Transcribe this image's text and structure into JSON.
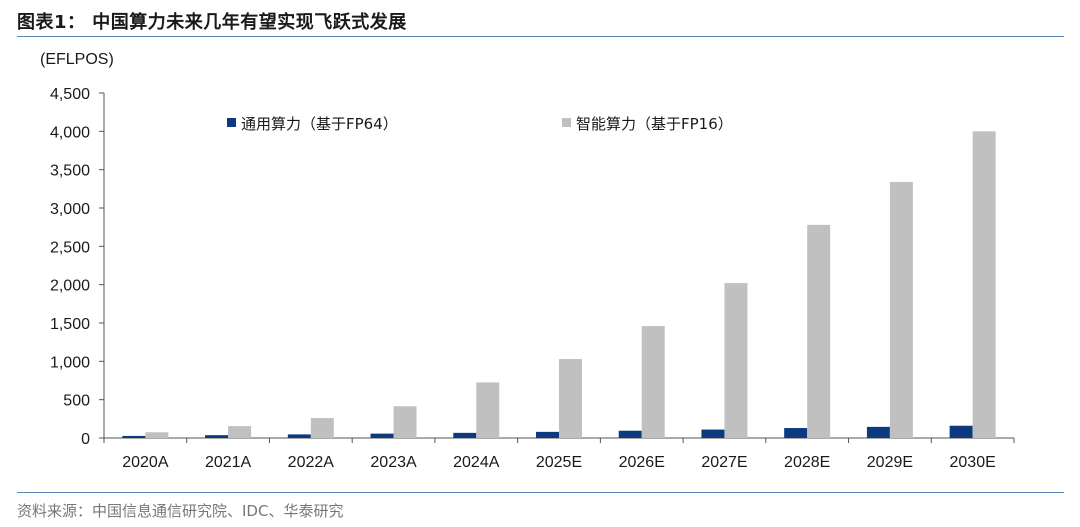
{
  "title": "图表1：  中国算力未来几年有望实现飞跃式发展",
  "source": "资料来源：中国信息通信研究院、IDC、华泰研究",
  "chart_data": {
    "type": "bar",
    "ylabel": "(EFLPOS)",
    "ylim": [
      0,
      4500
    ],
    "yticks": [
      0,
      500,
      1000,
      1500,
      2000,
      2500,
      3000,
      3500,
      4000,
      4500
    ],
    "ytick_labels": [
      "0",
      "500",
      "1,000",
      "1,500",
      "2,000",
      "2,500",
      "3,000",
      "3,500",
      "4,000",
      "4,500"
    ],
    "categories": [
      "2020A",
      "2021A",
      "2022A",
      "2023A",
      "2024A",
      "2025E",
      "2026E",
      "2027E",
      "2028E",
      "2029E",
      "2030E"
    ],
    "legend_position": "top",
    "grid": false,
    "series": [
      {
        "name": "通用算力（基于FP64）",
        "color": "#0b3a7e",
        "values": [
          27,
          37,
          47,
          57,
          67,
          80,
          95,
          110,
          130,
          145,
          160
        ]
      },
      {
        "name": "智能算力（基于FP16）",
        "color": "#c0c0c0",
        "values": [
          75,
          155,
          260,
          414,
          725,
          1030,
          1460,
          2020,
          2780,
          3340,
          4000
        ]
      }
    ]
  }
}
